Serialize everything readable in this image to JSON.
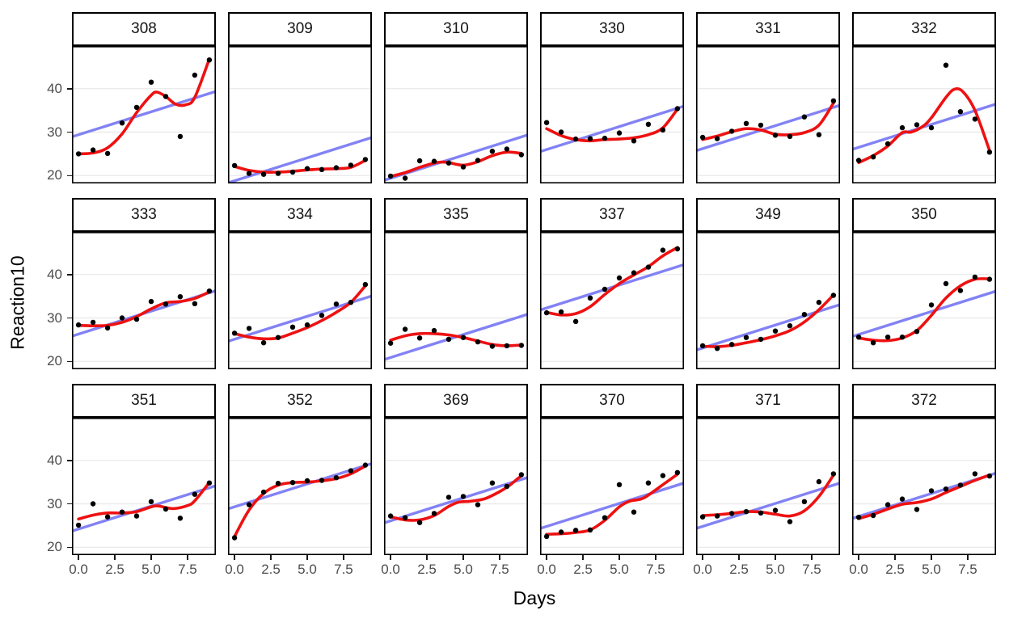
{
  "chart_data": {
    "type": "scatter",
    "title": "",
    "xlabel": "Days",
    "ylabel": "Reaction10",
    "x": [
      0,
      1,
      2,
      3,
      4,
      5,
      6,
      7,
      8,
      9
    ],
    "xlim": [
      -0.45,
      9.45
    ],
    "ylim": [
      18.2,
      49.8
    ],
    "grid": "major-y-only",
    "legend": "none",
    "x_ticks": {
      "values": [
        0,
        2.5,
        5,
        7.5
      ],
      "labels": [
        "0.0",
        "2.5",
        "5.0",
        "7.5"
      ]
    },
    "y_ticks": {
      "values": [
        20,
        30,
        40
      ],
      "labels": [
        "20",
        "30",
        "40"
      ]
    },
    "colors": {
      "point": "#000000",
      "loess_curve": "#ee1111",
      "linear_fit": "#8282f5",
      "gridline": "#ebebeb",
      "panel_border": "#000000",
      "strip_border": "#000000",
      "strip_bg": "#ffffff",
      "axis_text": "#4d4d4d",
      "axis_title": "#000000"
    },
    "facets": [
      {
        "label": "308",
        "points_by_day": [
          25.0,
          25.9,
          25.1,
          32.1,
          35.7,
          41.5,
          38.2,
          29.0,
          43.1,
          46.6
        ],
        "linear_fit": {
          "y_day0": 29.4,
          "y_day9": 38.9
        },
        "loess_curve": [
          [
            0,
            25.0
          ],
          [
            1,
            25.2
          ],
          [
            2,
            26.4
          ],
          [
            3,
            29.6
          ],
          [
            4,
            34.5
          ],
          [
            5,
            38.5
          ],
          [
            5.4,
            39.2
          ],
          [
            6,
            38.2
          ],
          [
            6.7,
            36.4
          ],
          [
            7.4,
            36.3
          ],
          [
            8,
            38.0
          ],
          [
            9,
            46.8
          ]
        ]
      },
      {
        "label": "309",
        "points_by_day": [
          22.3,
          20.5,
          20.3,
          20.5,
          20.8,
          21.6,
          21.4,
          21.8,
          22.4,
          23.7
        ],
        "linear_fit": {
          "y_day0": 18.8,
          "y_day9": 28.3
        },
        "loess_curve": [
          [
            0,
            22.1
          ],
          [
            1,
            21.2
          ],
          [
            2,
            20.8
          ],
          [
            3,
            20.8
          ],
          [
            4,
            21.0
          ],
          [
            5,
            21.3
          ],
          [
            6,
            21.5
          ],
          [
            7,
            21.6
          ],
          [
            8,
            21.9
          ],
          [
            9,
            23.5
          ]
        ]
      },
      {
        "label": "310",
        "points_by_day": [
          19.9,
          19.4,
          23.4,
          23.3,
          22.9,
          22.0,
          23.5,
          25.6,
          26.1,
          24.8
        ],
        "linear_fit": {
          "y_day0": 19.4,
          "y_day9": 28.9
        },
        "loess_curve": [
          [
            0,
            19.8
          ],
          [
            1,
            20.7
          ],
          [
            2,
            21.9
          ],
          [
            3,
            22.9
          ],
          [
            3.5,
            23.1
          ],
          [
            4,
            23.0
          ],
          [
            5,
            22.4
          ],
          [
            6,
            23.2
          ],
          [
            7,
            24.6
          ],
          [
            8,
            25.4
          ],
          [
            9,
            25.1
          ]
        ]
      },
      {
        "label": "330",
        "points_by_day": [
          32.2,
          30.0,
          28.4,
          28.5,
          28.6,
          29.8,
          28.0,
          31.8,
          30.5,
          35.4
        ],
        "linear_fit": {
          "y_day0": 26.0,
          "y_day9": 35.5
        },
        "loess_curve": [
          [
            0,
            30.8
          ],
          [
            1,
            29.2
          ],
          [
            2,
            28.3
          ],
          [
            3,
            28.0
          ],
          [
            4,
            28.3
          ],
          [
            5,
            28.4
          ],
          [
            6,
            28.7
          ],
          [
            7,
            29.4
          ],
          [
            8,
            31.0
          ],
          [
            9,
            35.3
          ]
        ]
      },
      {
        "label": "331",
        "points_by_day": [
          28.8,
          28.5,
          30.2,
          32.0,
          31.6,
          29.3,
          29.0,
          33.5,
          29.4,
          37.2
        ],
        "linear_fit": {
          "y_day0": 26.2,
          "y_day9": 35.7
        },
        "loess_curve": [
          [
            0,
            28.3
          ],
          [
            1,
            29.1
          ],
          [
            2,
            30.1
          ],
          [
            3,
            30.8
          ],
          [
            4,
            30.5
          ],
          [
            5,
            29.5
          ],
          [
            6,
            29.4
          ],
          [
            7,
            29.9
          ],
          [
            8,
            31.6
          ],
          [
            9,
            36.7
          ]
        ]
      },
      {
        "label": "332",
        "points_by_day": [
          23.5,
          24.3,
          27.3,
          31.0,
          31.7,
          31.0,
          45.4,
          34.7,
          33.0,
          25.4
        ],
        "linear_fit": {
          "y_day0": 26.5,
          "y_day9": 36.0
        },
        "loess_curve": [
          [
            0,
            23.0
          ],
          [
            1,
            24.6
          ],
          [
            2,
            26.8
          ],
          [
            3,
            29.9
          ],
          [
            3.6,
            30.0
          ],
          [
            4.4,
            31.3
          ],
          [
            5,
            33.3
          ],
          [
            6,
            38.0
          ],
          [
            6.6,
            39.9
          ],
          [
            7.2,
            39.2
          ],
          [
            8,
            35.0
          ],
          [
            9,
            25.8
          ]
        ]
      },
      {
        "label": "333",
        "points_by_day": [
          28.4,
          29.0,
          27.7,
          30.0,
          29.7,
          33.8,
          33.2,
          34.9,
          33.3,
          36.2
        ],
        "linear_fit": {
          "y_day0": 26.3,
          "y_day9": 35.8
        },
        "loess_curve": [
          [
            0,
            28.3
          ],
          [
            1,
            28.2
          ],
          [
            2,
            28.3
          ],
          [
            3,
            29.0
          ],
          [
            4,
            30.3
          ],
          [
            5,
            32.1
          ],
          [
            6,
            33.5
          ],
          [
            7,
            33.8
          ],
          [
            8,
            34.5
          ],
          [
            9,
            36.0
          ]
        ]
      },
      {
        "label": "334",
        "points_by_day": [
          26.5,
          27.6,
          24.3,
          25.5,
          27.9,
          28.4,
          30.6,
          33.2,
          33.6,
          37.7
        ],
        "linear_fit": {
          "y_day0": 25.1,
          "y_day9": 34.6
        },
        "loess_curve": [
          [
            0,
            26.4
          ],
          [
            1,
            25.6
          ],
          [
            2,
            25.2
          ],
          [
            3,
            25.4
          ],
          [
            4,
            26.5
          ],
          [
            5,
            27.8
          ],
          [
            6,
            29.4
          ],
          [
            7,
            31.3
          ],
          [
            8,
            33.6
          ],
          [
            9,
            37.4
          ]
        ]
      },
      {
        "label": "335",
        "points_by_day": [
          24.2,
          27.4,
          25.4,
          27.1,
          25.1,
          25.5,
          24.5,
          23.5,
          23.6,
          23.7
        ],
        "linear_fit": {
          "y_day0": 20.9,
          "y_day9": 30.4
        },
        "loess_curve": [
          [
            0,
            24.9
          ],
          [
            1,
            25.9
          ],
          [
            2,
            26.4
          ],
          [
            3,
            26.4
          ],
          [
            4,
            26.1
          ],
          [
            5,
            25.5
          ],
          [
            6,
            24.7
          ],
          [
            7,
            23.9
          ],
          [
            8,
            23.6
          ],
          [
            9,
            23.8
          ]
        ]
      },
      {
        "label": "337",
        "points_by_day": [
          31.2,
          31.4,
          29.2,
          34.6,
          36.6,
          39.2,
          40.4,
          41.7,
          45.6,
          45.9
        ],
        "linear_fit": {
          "y_day0": 32.3,
          "y_day9": 41.8
        },
        "loess_curve": [
          [
            0,
            31.3
          ],
          [
            1,
            30.7
          ],
          [
            2,
            31.0
          ],
          [
            3,
            32.6
          ],
          [
            4,
            35.4
          ],
          [
            5,
            37.9
          ],
          [
            6,
            39.9
          ],
          [
            7,
            41.8
          ],
          [
            8,
            44.3
          ],
          [
            9,
            46.2
          ]
        ]
      },
      {
        "label": "349",
        "points_by_day": [
          23.6,
          23.0,
          23.9,
          25.5,
          25.1,
          27.0,
          28.2,
          30.8,
          33.6,
          35.2
        ],
        "linear_fit": {
          "y_day0": 23.1,
          "y_day9": 32.6
        },
        "loess_curve": [
          [
            0,
            23.5
          ],
          [
            1,
            23.4
          ],
          [
            2,
            23.7
          ],
          [
            3,
            24.3
          ],
          [
            4,
            25.0
          ],
          [
            5,
            25.9
          ],
          [
            6,
            27.1
          ],
          [
            7,
            29.1
          ],
          [
            8,
            31.9
          ],
          [
            9,
            35.3
          ]
        ]
      },
      {
        "label": "350",
        "points_by_day": [
          25.6,
          24.3,
          25.6,
          25.6,
          26.9,
          33.0,
          37.9,
          36.3,
          39.4,
          38.9
        ],
        "linear_fit": {
          "y_day0": 26.2,
          "y_day9": 35.7
        },
        "loess_curve": [
          [
            0,
            25.4
          ],
          [
            1,
            24.9
          ],
          [
            2,
            24.8
          ],
          [
            3,
            25.4
          ],
          [
            4,
            27.1
          ],
          [
            5,
            30.6
          ],
          [
            6,
            34.6
          ],
          [
            7,
            37.4
          ],
          [
            8,
            38.9
          ],
          [
            9,
            39.0
          ]
        ]
      },
      {
        "label": "351",
        "points_by_day": [
          25.1,
          30.0,
          27.0,
          28.1,
          27.2,
          30.5,
          28.8,
          26.7,
          32.2,
          34.8
        ],
        "linear_fit": {
          "y_day0": 24.2,
          "y_day9": 33.7
        },
        "loess_curve": [
          [
            0,
            26.5
          ],
          [
            1,
            27.4
          ],
          [
            2,
            27.9
          ],
          [
            3,
            27.9
          ],
          [
            4,
            28.2
          ],
          [
            5,
            29.3
          ],
          [
            5.5,
            29.5
          ],
          [
            6.5,
            28.9
          ],
          [
            7.5,
            29.6
          ],
          [
            8,
            30.7
          ],
          [
            9,
            34.9
          ]
        ]
      },
      {
        "label": "352",
        "points_by_day": [
          22.2,
          29.8,
          32.7,
          34.7,
          34.9,
          35.3,
          35.4,
          36.0,
          37.6,
          38.9
        ],
        "linear_fit": {
          "y_day0": 29.3,
          "y_day9": 38.8
        },
        "loess_curve": [
          [
            0,
            22.5
          ],
          [
            1,
            28.6
          ],
          [
            2,
            32.4
          ],
          [
            3,
            34.3
          ],
          [
            4,
            34.9
          ],
          [
            5,
            35.0
          ],
          [
            6,
            35.3
          ],
          [
            7,
            35.8
          ],
          [
            8,
            36.9
          ],
          [
            9,
            38.7
          ]
        ]
      },
      {
        "label": "369",
        "points_by_day": [
          27.2,
          26.8,
          25.7,
          27.8,
          31.5,
          31.7,
          29.8,
          34.8,
          34.0,
          36.7
        ],
        "linear_fit": {
          "y_day0": 26.1,
          "y_day9": 35.6
        },
        "loess_curve": [
          [
            0,
            27.0
          ],
          [
            1,
            26.3
          ],
          [
            2,
            26.3
          ],
          [
            3,
            27.3
          ],
          [
            4,
            29.4
          ],
          [
            4.7,
            30.4
          ],
          [
            5.5,
            30.6
          ],
          [
            6.5,
            31.2
          ],
          [
            7.5,
            32.8
          ],
          [
            8.2,
            34.3
          ],
          [
            9,
            36.5
          ]
        ]
      },
      {
        "label": "370",
        "points_by_day": [
          22.5,
          23.5,
          23.9,
          24.0,
          26.8,
          34.4,
          28.1,
          34.8,
          36.5,
          37.2
        ],
        "linear_fit": {
          "y_day0": 24.8,
          "y_day9": 34.3
        },
        "loess_curve": [
          [
            0,
            23.0
          ],
          [
            1,
            23.1
          ],
          [
            2,
            23.4
          ],
          [
            3,
            24.0
          ],
          [
            4,
            26.2
          ],
          [
            5,
            29.3
          ],
          [
            5.7,
            30.6
          ],
          [
            6.5,
            31.1
          ],
          [
            7,
            32.0
          ],
          [
            8,
            34.4
          ],
          [
            9,
            36.8
          ]
        ]
      },
      {
        "label": "371",
        "points_by_day": [
          27.0,
          27.2,
          27.8,
          28.2,
          27.9,
          28.5,
          25.9,
          30.5,
          35.1,
          36.9
        ],
        "linear_fit": {
          "y_day0": 24.8,
          "y_day9": 34.3
        },
        "loess_curve": [
          [
            0,
            27.3
          ],
          [
            1,
            27.5
          ],
          [
            2,
            27.8
          ],
          [
            3,
            28.2
          ],
          [
            4,
            28.1
          ],
          [
            5,
            27.6
          ],
          [
            6,
            27.2
          ],
          [
            7,
            28.4
          ],
          [
            8,
            31.7
          ],
          [
            9,
            36.6
          ]
        ]
      },
      {
        "label": "372",
        "points_by_day": [
          26.9,
          27.3,
          29.8,
          31.1,
          28.7,
          33.0,
          33.4,
          34.3,
          36.9,
          36.4
        ],
        "linear_fit": {
          "y_day0": 27.1,
          "y_day9": 36.6
        },
        "loess_curve": [
          [
            0,
            26.6
          ],
          [
            1,
            27.6
          ],
          [
            2,
            28.8
          ],
          [
            3,
            29.9
          ],
          [
            4,
            30.3
          ],
          [
            5,
            31.1
          ],
          [
            6,
            32.6
          ],
          [
            7,
            34.0
          ],
          [
            8,
            35.4
          ],
          [
            9,
            36.6
          ]
        ]
      }
    ]
  }
}
